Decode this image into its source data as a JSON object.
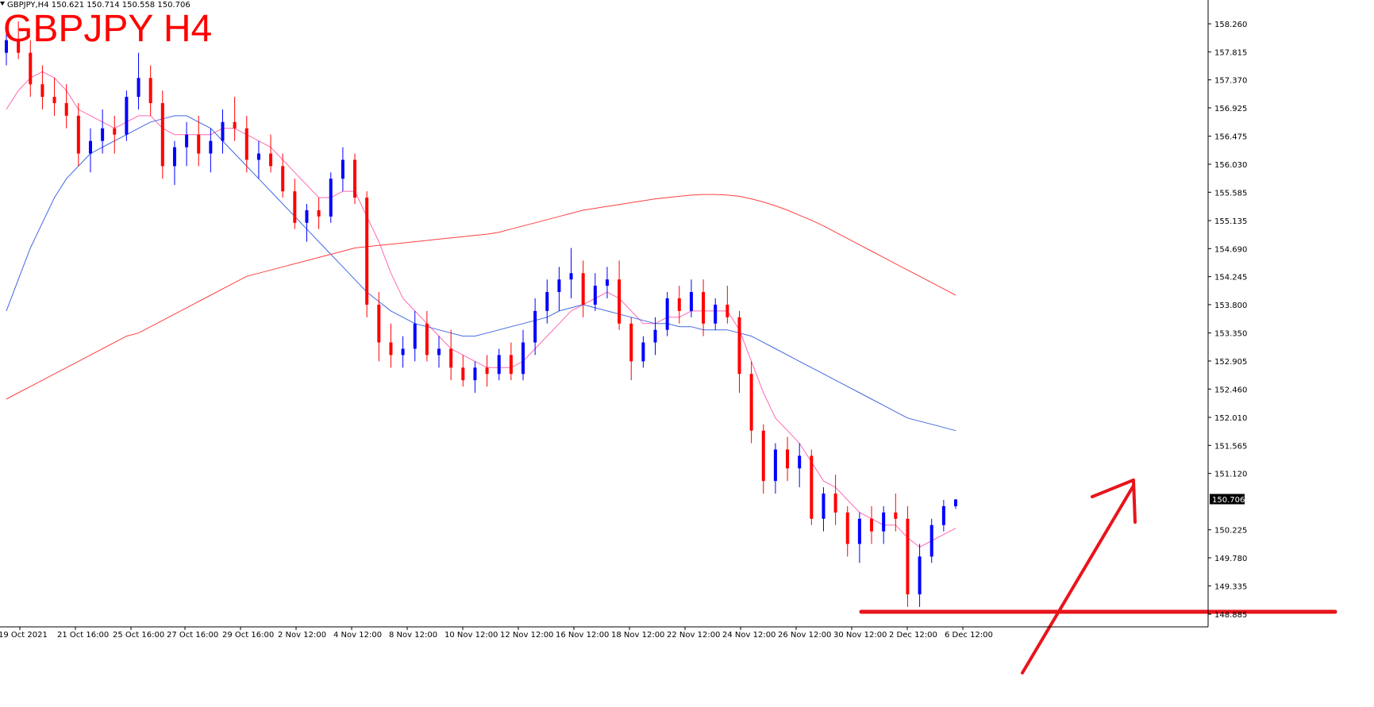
{
  "header": {
    "info_line": "GBPJPY,H4  150.621 150.714 150.558 150.706",
    "big_title": "GBPJPY H4"
  },
  "colors": {
    "bull": "#0000ff",
    "bear": "#ff0000",
    "ma_fast": "#ff69b4",
    "ma_mid": "#4169e1",
    "ma_slow": "#ff4040",
    "annotation": "#e8141b",
    "title": "#ff0000"
  },
  "chart_data": {
    "type": "candlestick",
    "symbol": "GBPJPY",
    "timeframe": "H4",
    "ylim": [
      148.77,
      158.45
    ],
    "y_ticks": [
      "158.260",
      "157.815",
      "157.370",
      "156.925",
      "156.475",
      "156.030",
      "155.585",
      "155.135",
      "154.690",
      "154.245",
      "153.800",
      "153.350",
      "152.905",
      "152.460",
      "152.010",
      "151.565",
      "151.120",
      "150.225",
      "149.780",
      "149.335",
      "148.885"
    ],
    "current_price": "150.706",
    "x_ticks": [
      "19 Oct 2021",
      "21 Oct 16:00",
      "25 Oct 16:00",
      "27 Oct 16:00",
      "29 Oct 16:00",
      "2 Nov 12:00",
      "4 Nov 12:00",
      "8 Nov 12:00",
      "10 Nov 12:00",
      "12 Nov 12:00",
      "16 Nov 12:00",
      "18 Nov 12:00",
      "22 Nov 12:00",
      "24 Nov 12:00",
      "26 Nov 12:00",
      "30 Nov 12:00",
      "2 Dec 12:00",
      "6 Dec 12:00"
    ],
    "candles_ohlc": [
      [
        157.8,
        158.2,
        157.6,
        158.0
      ],
      [
        158.0,
        158.3,
        157.7,
        157.8
      ],
      [
        157.8,
        158.0,
        157.1,
        157.3
      ],
      [
        157.3,
        157.6,
        156.9,
        157.1
      ],
      [
        157.1,
        157.4,
        156.8,
        157.0
      ],
      [
        157.0,
        157.3,
        156.6,
        156.8
      ],
      [
        156.8,
        157.0,
        156.0,
        156.2
      ],
      [
        156.2,
        156.6,
        155.9,
        156.4
      ],
      [
        156.4,
        156.9,
        156.2,
        156.6
      ],
      [
        156.6,
        156.8,
        156.2,
        156.5
      ],
      [
        156.5,
        157.2,
        156.4,
        157.1
      ],
      [
        157.1,
        157.8,
        156.9,
        157.4
      ],
      [
        157.4,
        157.6,
        156.8,
        157.0
      ],
      [
        157.0,
        157.2,
        155.8,
        156.0
      ],
      [
        156.0,
        156.4,
        155.7,
        156.3
      ],
      [
        156.3,
        156.7,
        156.0,
        156.5
      ],
      [
        156.5,
        156.8,
        156.0,
        156.2
      ],
      [
        156.2,
        156.6,
        155.9,
        156.4
      ],
      [
        156.4,
        156.9,
        156.2,
        156.7
      ],
      [
        156.7,
        157.1,
        156.4,
        156.6
      ],
      [
        156.6,
        156.8,
        155.9,
        156.1
      ],
      [
        156.1,
        156.4,
        155.8,
        156.2
      ],
      [
        156.2,
        156.5,
        155.9,
        156.0
      ],
      [
        156.0,
        156.2,
        155.5,
        155.6
      ],
      [
        155.6,
        155.8,
        155.0,
        155.1
      ],
      [
        155.1,
        155.4,
        154.8,
        155.3
      ],
      [
        155.3,
        155.5,
        155.0,
        155.2
      ],
      [
        155.2,
        155.9,
        155.1,
        155.8
      ],
      [
        155.8,
        156.3,
        155.6,
        156.1
      ],
      [
        156.1,
        156.2,
        155.4,
        155.5
      ],
      [
        155.5,
        155.6,
        153.6,
        153.8
      ],
      [
        153.8,
        154.0,
        152.9,
        153.2
      ],
      [
        153.2,
        153.5,
        152.8,
        153.0
      ],
      [
        153.0,
        153.3,
        152.8,
        153.1
      ],
      [
        153.1,
        153.7,
        152.9,
        153.5
      ],
      [
        153.5,
        153.7,
        152.9,
        153.0
      ],
      [
        153.0,
        153.3,
        152.8,
        153.1
      ],
      [
        153.1,
        153.4,
        152.6,
        152.8
      ],
      [
        152.8,
        153.0,
        152.5,
        152.6
      ],
      [
        152.6,
        152.9,
        152.4,
        152.8
      ],
      [
        152.8,
        153.0,
        152.5,
        152.7
      ],
      [
        152.7,
        153.1,
        152.6,
        153.0
      ],
      [
        153.0,
        153.2,
        152.6,
        152.7
      ],
      [
        152.7,
        153.4,
        152.6,
        153.2
      ],
      [
        153.2,
        153.9,
        153.0,
        153.7
      ],
      [
        153.7,
        154.2,
        153.5,
        154.0
      ],
      [
        154.0,
        154.4,
        153.7,
        154.2
      ],
      [
        154.2,
        154.7,
        153.9,
        154.3
      ],
      [
        154.3,
        154.5,
        153.6,
        153.8
      ],
      [
        153.8,
        154.3,
        153.7,
        154.1
      ],
      [
        154.1,
        154.4,
        153.9,
        154.2
      ],
      [
        154.2,
        154.5,
        153.4,
        153.5
      ],
      [
        153.5,
        153.6,
        152.6,
        152.9
      ],
      [
        152.9,
        153.3,
        152.8,
        153.2
      ],
      [
        153.2,
        153.6,
        153.0,
        153.4
      ],
      [
        153.4,
        154.0,
        153.3,
        153.9
      ],
      [
        153.9,
        154.1,
        153.5,
        153.7
      ],
      [
        153.7,
        154.2,
        153.6,
        154.0
      ],
      [
        154.0,
        154.2,
        153.3,
        153.5
      ],
      [
        153.5,
        153.9,
        153.4,
        153.8
      ],
      [
        153.8,
        154.1,
        153.5,
        153.6
      ],
      [
        153.6,
        153.7,
        152.4,
        152.7
      ],
      [
        152.7,
        152.9,
        151.6,
        151.8
      ],
      [
        151.8,
        151.9,
        150.8,
        151.0
      ],
      [
        151.0,
        151.6,
        150.8,
        151.5
      ],
      [
        151.5,
        151.7,
        151.0,
        151.2
      ],
      [
        151.2,
        151.6,
        150.9,
        151.4
      ],
      [
        151.4,
        151.5,
        150.3,
        150.4
      ],
      [
        150.4,
        150.9,
        150.2,
        150.8
      ],
      [
        150.8,
        151.1,
        150.3,
        150.5
      ],
      [
        150.5,
        150.6,
        149.8,
        150.0
      ],
      [
        150.0,
        150.5,
        149.7,
        150.4
      ],
      [
        150.4,
        150.6,
        150.0,
        150.2
      ],
      [
        150.2,
        150.6,
        150.0,
        150.5
      ],
      [
        150.5,
        150.8,
        150.2,
        150.4
      ],
      [
        150.4,
        150.6,
        149.0,
        149.2
      ],
      [
        149.2,
        150.0,
        149.0,
        149.8
      ],
      [
        149.8,
        150.4,
        149.7,
        150.3
      ],
      [
        150.3,
        150.7,
        150.2,
        150.6
      ],
      [
        150.6,
        150.714,
        150.558,
        150.706
      ]
    ],
    "series": [
      {
        "values": [
          156.9,
          157.2,
          157.4,
          157.5,
          157.4,
          157.2,
          156.9,
          156.8,
          156.7,
          156.6,
          156.7,
          156.8,
          156.8,
          156.6,
          156.5,
          156.5,
          156.5,
          156.5,
          156.6,
          156.6,
          156.5,
          156.4,
          156.3,
          156.1,
          155.9,
          155.7,
          155.5,
          155.5,
          155.6,
          155.6,
          155.2,
          154.8,
          154.3,
          153.9,
          153.7,
          153.5,
          153.3,
          153.1,
          153.0,
          152.9,
          152.8,
          152.8,
          152.8,
          152.9,
          153.1,
          153.3,
          153.5,
          153.7,
          153.8,
          153.9,
          154.0,
          153.9,
          153.7,
          153.5,
          153.5,
          153.6,
          153.6,
          153.7,
          153.7,
          153.7,
          153.7,
          153.4,
          152.9,
          152.4,
          152.0,
          151.8,
          151.6,
          151.3,
          151.0,
          150.9,
          150.7,
          150.5,
          150.4,
          150.3,
          150.3,
          150.1,
          149.95,
          150.05,
          150.15,
          150.25
        ]
      },
      {
        "values": [
          153.7,
          154.2,
          154.7,
          155.1,
          155.5,
          155.8,
          156.0,
          156.2,
          156.3,
          156.4,
          156.5,
          156.6,
          156.7,
          156.75,
          156.8,
          156.8,
          156.7,
          156.6,
          156.4,
          156.2,
          156.0,
          155.8,
          155.6,
          155.4,
          155.2,
          155.0,
          154.8,
          154.6,
          154.4,
          154.2,
          154.0,
          153.85,
          153.7,
          153.6,
          153.5,
          153.45,
          153.4,
          153.35,
          153.3,
          153.3,
          153.35,
          153.4,
          153.45,
          153.5,
          153.55,
          153.6,
          153.7,
          153.75,
          153.8,
          153.75,
          153.7,
          153.65,
          153.6,
          153.55,
          153.5,
          153.5,
          153.45,
          153.45,
          153.4,
          153.4,
          153.4,
          153.35,
          153.3,
          153.2,
          153.1,
          153.0,
          152.9,
          152.8,
          152.7,
          152.6,
          152.5,
          152.4,
          152.3,
          152.2,
          152.1,
          152.0,
          151.95,
          151.9,
          151.85,
          151.8
        ]
      },
      {
        "values": [
          152.3,
          152.4,
          152.5,
          152.6,
          152.7,
          152.8,
          152.9,
          153.0,
          153.1,
          153.2,
          153.3,
          153.35,
          153.45,
          153.55,
          153.65,
          153.75,
          153.85,
          153.95,
          154.05,
          154.15,
          154.25,
          154.3,
          154.35,
          154.4,
          154.45,
          154.5,
          154.55,
          154.6,
          154.65,
          154.7,
          154.72,
          154.74,
          154.76,
          154.78,
          154.8,
          154.82,
          154.84,
          154.86,
          154.88,
          154.9,
          154.92,
          154.95,
          155.0,
          155.05,
          155.1,
          155.15,
          155.2,
          155.25,
          155.3,
          155.33,
          155.36,
          155.39,
          155.42,
          155.45,
          155.48,
          155.5,
          155.52,
          155.54,
          155.55,
          155.55,
          155.54,
          155.52,
          155.48,
          155.43,
          155.37,
          155.3,
          155.22,
          155.14,
          155.05,
          154.95,
          154.85,
          154.75,
          154.65,
          154.55,
          154.45,
          154.35,
          154.25,
          154.15,
          154.05,
          153.95
        ]
      }
    ],
    "annotations": {
      "support_level": 148.885,
      "arrow": "up-right"
    }
  }
}
